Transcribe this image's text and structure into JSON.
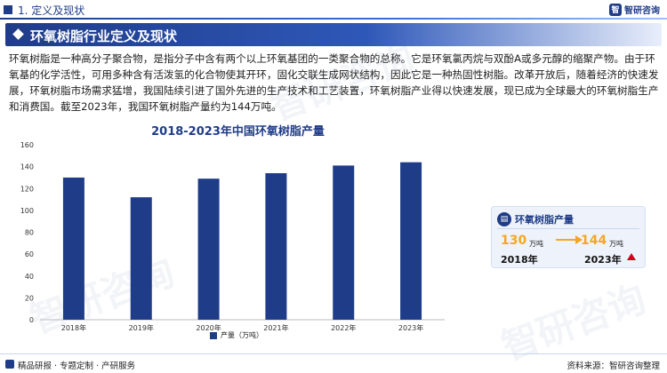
{
  "header": {
    "section": "1. 定义及现状",
    "logo": "智研咨询"
  },
  "page_title": "环氧树脂行业定义及现状",
  "intro": "环氧树脂是一种高分子聚合物，是指分子中含有两个以上环氧基团的一类聚合物的总称。它是环氧氯丙烷与双酚A或多元醇的缩聚产物。由于环氧基的化学活性，可用多种含有活泼氢的化合物使其开环，固化交联生成网状结构，因此它是一种热固性树脂。改革开放后，随着经济的快速发展，环氧树脂市场需求猛增，我国陆续引进了国外先进的生产技术和工艺装置，环氧树脂产业得以快速发展，现已成为全球最大的环氧树脂生产和消费国。截至2023年，我国环氧树脂产量约为144万吨。",
  "colors": {
    "primary": "#1f3c88",
    "accent": "#f5a623",
    "up": "#d0021b"
  },
  "chart_data": {
    "type": "bar",
    "title": "2018-2023年中国环氧树脂产量",
    "categories": [
      "2018年",
      "2019年",
      "2020年",
      "2021年",
      "2022年",
      "2023年"
    ],
    "series": [
      {
        "name": "产量（万吨）",
        "values": [
          130,
          112,
          129,
          134,
          141,
          144
        ]
      }
    ],
    "ylim": [
      0,
      160
    ],
    "yticks": [
      0,
      20,
      40,
      60,
      80,
      100,
      120,
      140,
      160
    ],
    "grid": false,
    "legend": "bottom"
  },
  "card": {
    "title": "环氧树脂产量",
    "from_value": "130",
    "from_unit": "万吨",
    "from_year": "2018年",
    "to_value": "144",
    "to_unit": "万吨",
    "to_year": "2023年"
  },
  "footer": {
    "left": "精品研报 · 专题定制 · 产研服务",
    "right": "资料来源：智研咨询整理"
  },
  "watermark": "智研咨询"
}
